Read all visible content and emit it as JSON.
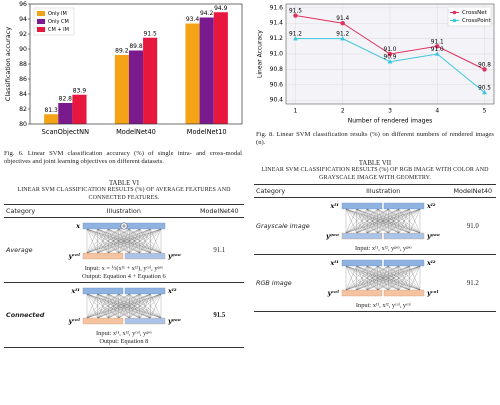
{
  "chart_data": [
    {
      "type": "bar",
      "categories": [
        "ScanObjectNN",
        "ModelNet40",
        "ModelNet10"
      ],
      "series": [
        {
          "name": "Only IM",
          "color": "#f5a316",
          "values": [
            81.3,
            89.2,
            93.4
          ]
        },
        {
          "name": "Only CM",
          "color": "#7a1a8c",
          "values": [
            82.8,
            89.8,
            94.2
          ]
        },
        {
          "name": "CM + IM",
          "color": "#e8173e",
          "values": [
            83.9,
            91.5,
            94.9
          ]
        }
      ],
      "ylabel": "Classification accuracy",
      "ylim": [
        80,
        96
      ],
      "yticks": [
        80,
        82,
        84,
        86,
        88,
        90,
        92,
        94,
        96
      ],
      "legend": "upper left"
    },
    {
      "type": "line",
      "x": [
        1,
        2,
        3,
        4,
        5
      ],
      "xlim": [
        0.8,
        5.2
      ],
      "xticks": [
        1,
        2,
        3,
        4,
        5
      ],
      "xlabel": "Number of rendered images",
      "ylabel": "Linear Accuracy",
      "ylim": [
        90.35,
        91.65
      ],
      "yticks": [
        90.4,
        90.6,
        90.8,
        {
          "value": 91,
          "label": "91.0"
        },
        91.2,
        91.4,
        91.6
      ],
      "grid": true,
      "legend": "upper right",
      "series": [
        {
          "name": "CrossNet",
          "color": "#e0305f",
          "marker": "circle",
          "values": [
            91.5,
            91.4,
            91.0,
            91.1,
            90.8
          ],
          "value_labels": [
            "91.5",
            "91.4",
            "91.0",
            "91.1",
            "90.8"
          ]
        },
        {
          "name": "CrossPoint",
          "color": "#3cc6e0",
          "marker": "triangle",
          "values": [
            91.2,
            91.2,
            90.9,
            91.0,
            90.5
          ],
          "value_labels": [
            "91.2",
            "91.2",
            "90.9",
            "91.0",
            "90.5"
          ]
        }
      ]
    }
  ],
  "figures": [
    {
      "caption": "Fig. 6.  Linear SVM classification accuracy (%) of single intra- and cross-modal objectives and joint learning objectives on different datasets."
    },
    {
      "caption": "Fig. 8.  Linear SVM classification results (%) on different numbers of rendered images (n)."
    }
  ],
  "tables": [
    {
      "title": "TABLE VI",
      "subtitle": "Linear SVM classification results (%) of average features and connected features.",
      "header": [
        "Category",
        "Illustration",
        "ModelNet40"
      ],
      "rows": [
        {
          "category": "Average",
          "diagram": {
            "labels": {
              "tl": "x",
              "bl": "yᶜᵒˡ",
              "br": "yᵍᵉᵒ"
            },
            "bottom_colors": [
              "#f6c3a0",
              "#a9c4e8"
            ],
            "plus": true
          },
          "input": "Input: x = ½(xᴵ¹ + xᴵ²), yᶜᵒˡ, yᵍᵉᵒ",
          "output": "Output: Equation 4 + Equation 6",
          "value": "91.1"
        },
        {
          "category": "Connected",
          "bold": true,
          "diagram": {
            "labels": {
              "tl": "xᴵ¹",
              "tr": "xᴵ²",
              "bl": "yᶜᵒˡ",
              "br": "yᵍᵉᵒ"
            },
            "bottom_colors": [
              "#f6c3a0",
              "#a9c4e8"
            ]
          },
          "input": "Input: xᴵ¹, xᴵ², yᶜᵒˡ, yᵍᵉᵒ",
          "output": "Output: Equation 8",
          "value": "91.5"
        }
      ]
    },
    {
      "title": "TABLE VII",
      "subtitle": "Linear SVM classification results (%) of RGB image with color and grayscale image with geometry.",
      "header": [
        "Category",
        "Illustration",
        "ModelNet40"
      ],
      "rows": [
        {
          "category": "Grayscale image",
          "diagram": {
            "labels": {
              "tl": "xᴵ¹",
              "tr": "xᴵ²",
              "bl": "yᵍᵉᵒ",
              "br": "yᵍᵉᵒ"
            },
            "bottom_colors": [
              "#a9c4e8",
              "#a9c4e8"
            ]
          },
          "input": "Input: xᴵ¹, xᴵ², yᵍᵉᵒ, yᵍᵉᵒ",
          "value": "91.0"
        },
        {
          "category": "RGB image",
          "diagram": {
            "labels": {
              "tl": "xᴵ¹",
              "tr": "xᴵ²",
              "bl": "yᶜᵒˡ",
              "br": "yᶜᵒˡ"
            },
            "bottom_colors": [
              "#f6c3a0",
              "#f6c3a0"
            ]
          },
          "input": "Input: xᴵ¹, xᴵ², yᶜᵒˡ, yᶜᵒˡ",
          "value": "91.2"
        }
      ]
    }
  ]
}
